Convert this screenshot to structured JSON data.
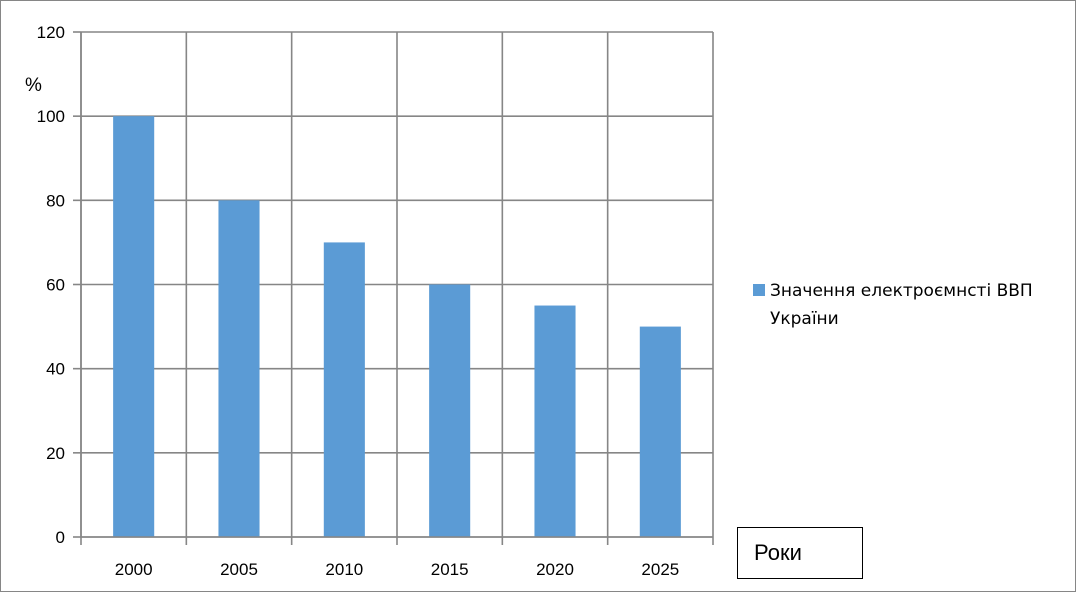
{
  "chart_data": {
    "type": "bar",
    "categories": [
      "2000",
      "2005",
      "2010",
      "2015",
      "2020",
      "2025"
    ],
    "series": [
      {
        "name": "Значення електроємнсті ВВП України",
        "values": [
          100,
          80,
          70,
          60,
          55,
          50
        ]
      }
    ],
    "title": "",
    "xlabel": "Роки",
    "ylabel": "%",
    "ylim": [
      0,
      120
    ],
    "yticks": [
      "0",
      "20",
      "40",
      "60",
      "80",
      "100",
      "120"
    ],
    "grid": true,
    "legend_position": "right",
    "colors": {
      "bar": "#5b9bd5",
      "grid": "#868686"
    }
  }
}
